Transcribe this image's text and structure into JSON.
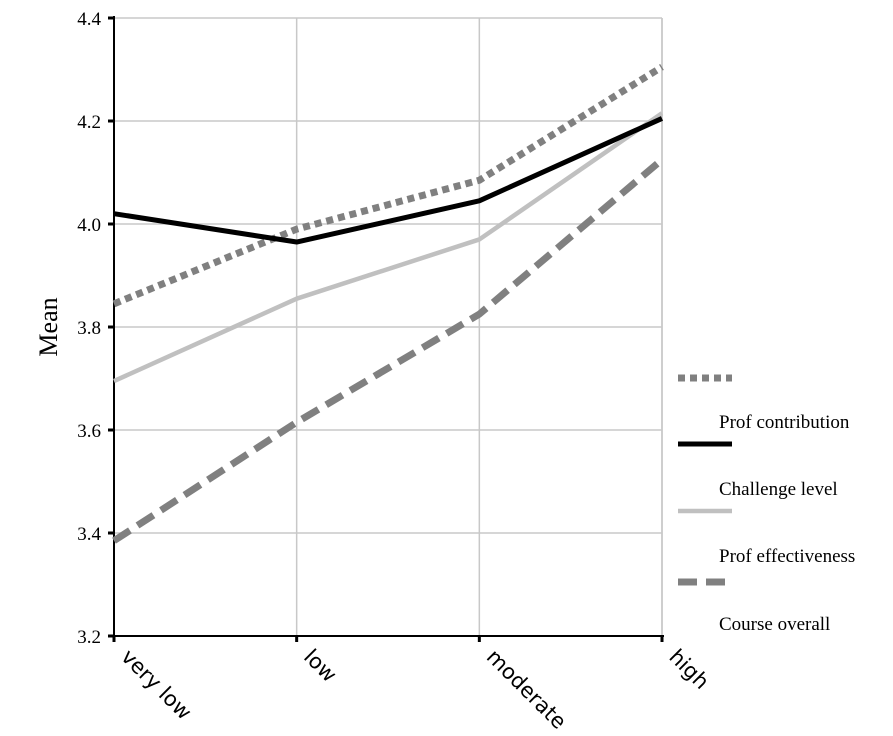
{
  "chart_data": {
    "type": "line",
    "title": "",
    "xlabel": "",
    "ylabel": "Mean",
    "categories": [
      "very low",
      "low",
      "moderate",
      "high"
    ],
    "ylim": [
      3.2,
      4.4
    ],
    "yticks": [
      "3.2",
      "3.4",
      "3.6",
      "3.8",
      "4.0",
      "4.2",
      "4.4"
    ],
    "grid": true,
    "legend_position": "right",
    "series": [
      {
        "name": "",
        "values": [
          3.845,
          3.99,
          4.085,
          4.305
        ],
        "color": "#808080",
        "style": "dotted"
      },
      {
        "name": "Prof contribution",
        "values": [
          4.02,
          3.965,
          4.045,
          4.205
        ],
        "color": "#000000",
        "style": "solid"
      },
      {
        "name": "Challenge level",
        "values": [
          3.695,
          3.855,
          3.97,
          4.215
        ],
        "color": "#c0c0c0",
        "style": "solid"
      },
      {
        "name": "Prof effectiveness",
        "values": [
          3.385,
          3.615,
          3.825,
          4.125
        ],
        "color": "#808080",
        "style": "dashed"
      }
    ],
    "legend_extra_labels": [
      "Course overall"
    ]
  }
}
